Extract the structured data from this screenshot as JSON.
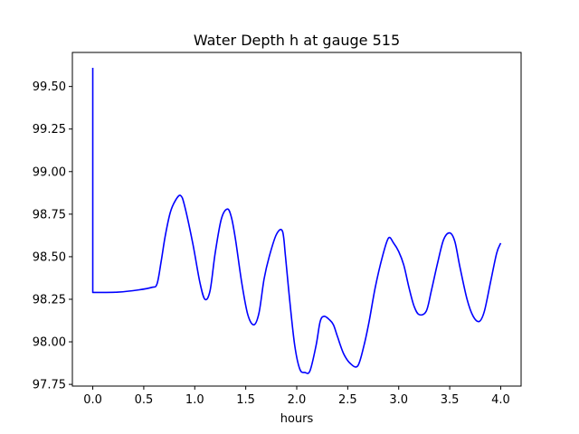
{
  "chart_data": {
    "type": "line",
    "title": "Water Depth h at gauge 515",
    "xlabel": "hours",
    "ylabel": "",
    "xlim": [
      -0.2,
      4.2
    ],
    "ylim": [
      97.74,
      99.7
    ],
    "x_ticks": [
      0.0,
      0.5,
      1.0,
      1.5,
      2.0,
      2.5,
      3.0,
      3.5,
      4.0
    ],
    "x_tick_labels": [
      "0.0",
      "0.5",
      "1.0",
      "1.5",
      "2.0",
      "2.5",
      "3.0",
      "3.5",
      "4.0"
    ],
    "y_ticks": [
      97.75,
      98.0,
      98.25,
      98.5,
      98.75,
      99.0,
      99.25,
      99.5
    ],
    "y_tick_labels": [
      "97.75",
      "98.00",
      "98.25",
      "98.50",
      "98.75",
      "99.00",
      "99.25",
      "99.50"
    ],
    "grid": false,
    "series": [
      {
        "color": "#0000ff",
        "x": [
          0.0,
          0.0,
          0.05,
          0.25,
          0.45,
          0.58,
          0.63,
          0.67,
          0.71,
          0.76,
          0.81,
          0.86,
          0.9,
          0.98,
          1.05,
          1.1,
          1.15,
          1.2,
          1.26,
          1.32,
          1.36,
          1.4,
          1.46,
          1.52,
          1.58,
          1.63,
          1.68,
          1.73,
          1.8,
          1.86,
          1.89,
          1.93,
          1.98,
          2.03,
          2.08,
          2.13,
          2.19,
          2.23,
          2.27,
          2.32,
          2.36,
          2.4,
          2.46,
          2.53,
          2.6,
          2.66,
          2.71,
          2.77,
          2.84,
          2.9,
          2.95,
          3.0,
          3.05,
          3.1,
          3.15,
          3.2,
          3.27,
          3.32,
          3.38,
          3.44,
          3.5,
          3.55,
          3.6,
          3.67,
          3.73,
          3.79,
          3.84,
          3.9,
          3.96,
          4.0
        ],
        "y": [
          99.61,
          98.29,
          98.29,
          98.292,
          98.305,
          98.32,
          98.34,
          98.47,
          98.62,
          98.76,
          98.83,
          98.86,
          98.8,
          98.58,
          98.35,
          98.25,
          98.3,
          98.52,
          98.72,
          98.78,
          98.73,
          98.6,
          98.35,
          98.16,
          98.1,
          98.17,
          98.37,
          98.5,
          98.63,
          98.65,
          98.5,
          98.25,
          97.98,
          97.84,
          97.82,
          97.83,
          97.98,
          98.12,
          98.15,
          98.13,
          98.1,
          98.03,
          97.93,
          97.87,
          97.86,
          97.98,
          98.12,
          98.32,
          98.5,
          98.61,
          98.58,
          98.53,
          98.45,
          98.32,
          98.21,
          98.16,
          98.18,
          98.3,
          98.46,
          98.6,
          98.64,
          98.59,
          98.44,
          98.25,
          98.15,
          98.12,
          98.18,
          98.35,
          98.52,
          98.58
        ]
      }
    ]
  }
}
